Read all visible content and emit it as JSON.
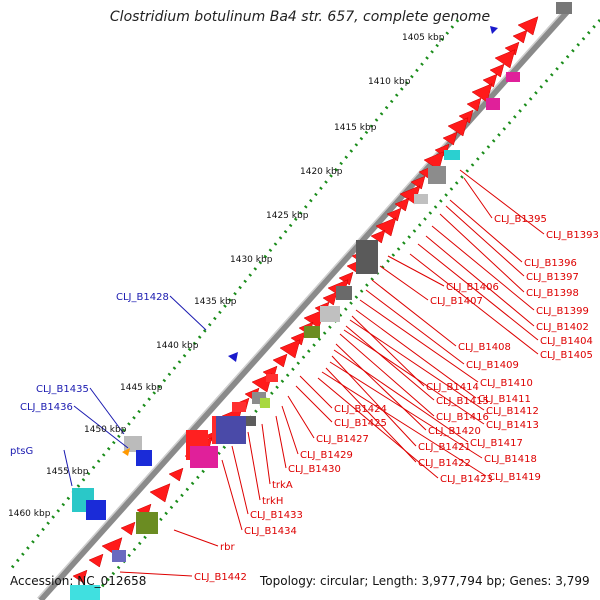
{
  "title": "Clostridium botulinum Ba4 str. 657, complete genome",
  "footer": {
    "accession": "Accession: NC_012658",
    "summary": "Topology: circular; Length: 3,977,794 bp; Genes: 3,799"
  },
  "ticks": [
    "1405 kbp",
    "1410 kbp",
    "1415 kbp",
    "1420 kbp",
    "1425 kbp",
    "1430 kbp",
    "1435 kbp",
    "1440 kbp",
    "1445 kbp",
    "1450 kbp",
    "1455 kbp",
    "1460 kbp"
  ],
  "labels_red": [
    "CLJ_B1395",
    "CLJ_B1393",
    "CLJ_B1396",
    "CLJ_B1397",
    "CLJ_B1398",
    "CLJ_B1399",
    "CLJ_B1402",
    "CLJ_B1404",
    "CLJ_B1405",
    "CLJ_B1406",
    "CLJ_B1407",
    "CLJ_B1408",
    "CLJ_B1409",
    "CLJ_B1410",
    "CLJ_B1414",
    "CLJ_B1411",
    "CLJ_B1415",
    "CLJ_B1412",
    "CLJ_B1416",
    "CLJ_B1413",
    "CLJ_B1424",
    "CLJ_B1420",
    "CLJ_B1425",
    "CLJ_B1427",
    "CLJ_B1417",
    "CLJ_B1421",
    "CLJ_B1429",
    "CLJ_B1418",
    "CLJ_B1422",
    "CLJ_B1430",
    "CLJ_B1419",
    "CLJ_B1423",
    "trkA",
    "trkH",
    "CLJ_B1433",
    "CLJ_B1434",
    "rbr",
    "CLJ_B1442"
  ],
  "labels_blue": [
    "CLJ_B1428",
    "CLJ_B1435",
    "CLJ_B1436",
    "ptsG"
  ],
  "colors": {
    "cds": "#ff1a1a",
    "rna": "#1a1acc",
    "label_red": "#dd0000",
    "label_blue": "#1a1ab0",
    "backbone": "#888888",
    "tick": "#1a8c1a"
  }
}
